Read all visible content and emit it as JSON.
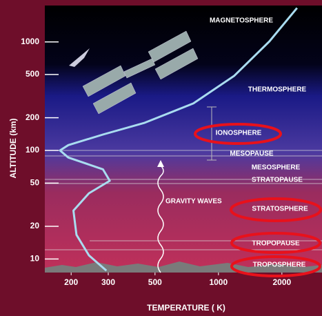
{
  "chart_data": {
    "type": "line",
    "xlabel": "TEMPERATURE ( K)",
    "ylabel": "ALTITUDE (km)",
    "xscale": "log",
    "yscale": "log",
    "xlim": [
      150,
      3100
    ],
    "ylim": [
      7.5,
      2100
    ],
    "xticks": [
      200,
      300,
      500,
      1000,
      2000
    ],
    "yticks": [
      10,
      20,
      50,
      100,
      200,
      500,
      1000
    ],
    "series": [
      {
        "color": "#a9dcf0",
        "x": [
          294,
          243,
          212,
          205,
          243,
          305,
          283,
          194,
          177,
          194,
          283,
          447,
          760,
          1190,
          1745,
          2360
        ],
        "values": [
          7.8,
          10.8,
          16.7,
          27.9,
          40.3,
          52.5,
          67,
          86,
          100,
          112,
          140,
          180,
          271,
          488,
          1010,
          2050
        ]
      }
    ],
    "annotations": [
      "MAGNETOSPHERE",
      "THERMOSPHERE",
      "IONOSPHERE",
      "MESOPAUSE",
      "MESOSPHERE",
      "STRATOPAUSE",
      "STRATOSPHERE",
      "TROPOPAUSE",
      "TROPOSPHERE",
      "GRAVITY WAVES"
    ]
  }
}
